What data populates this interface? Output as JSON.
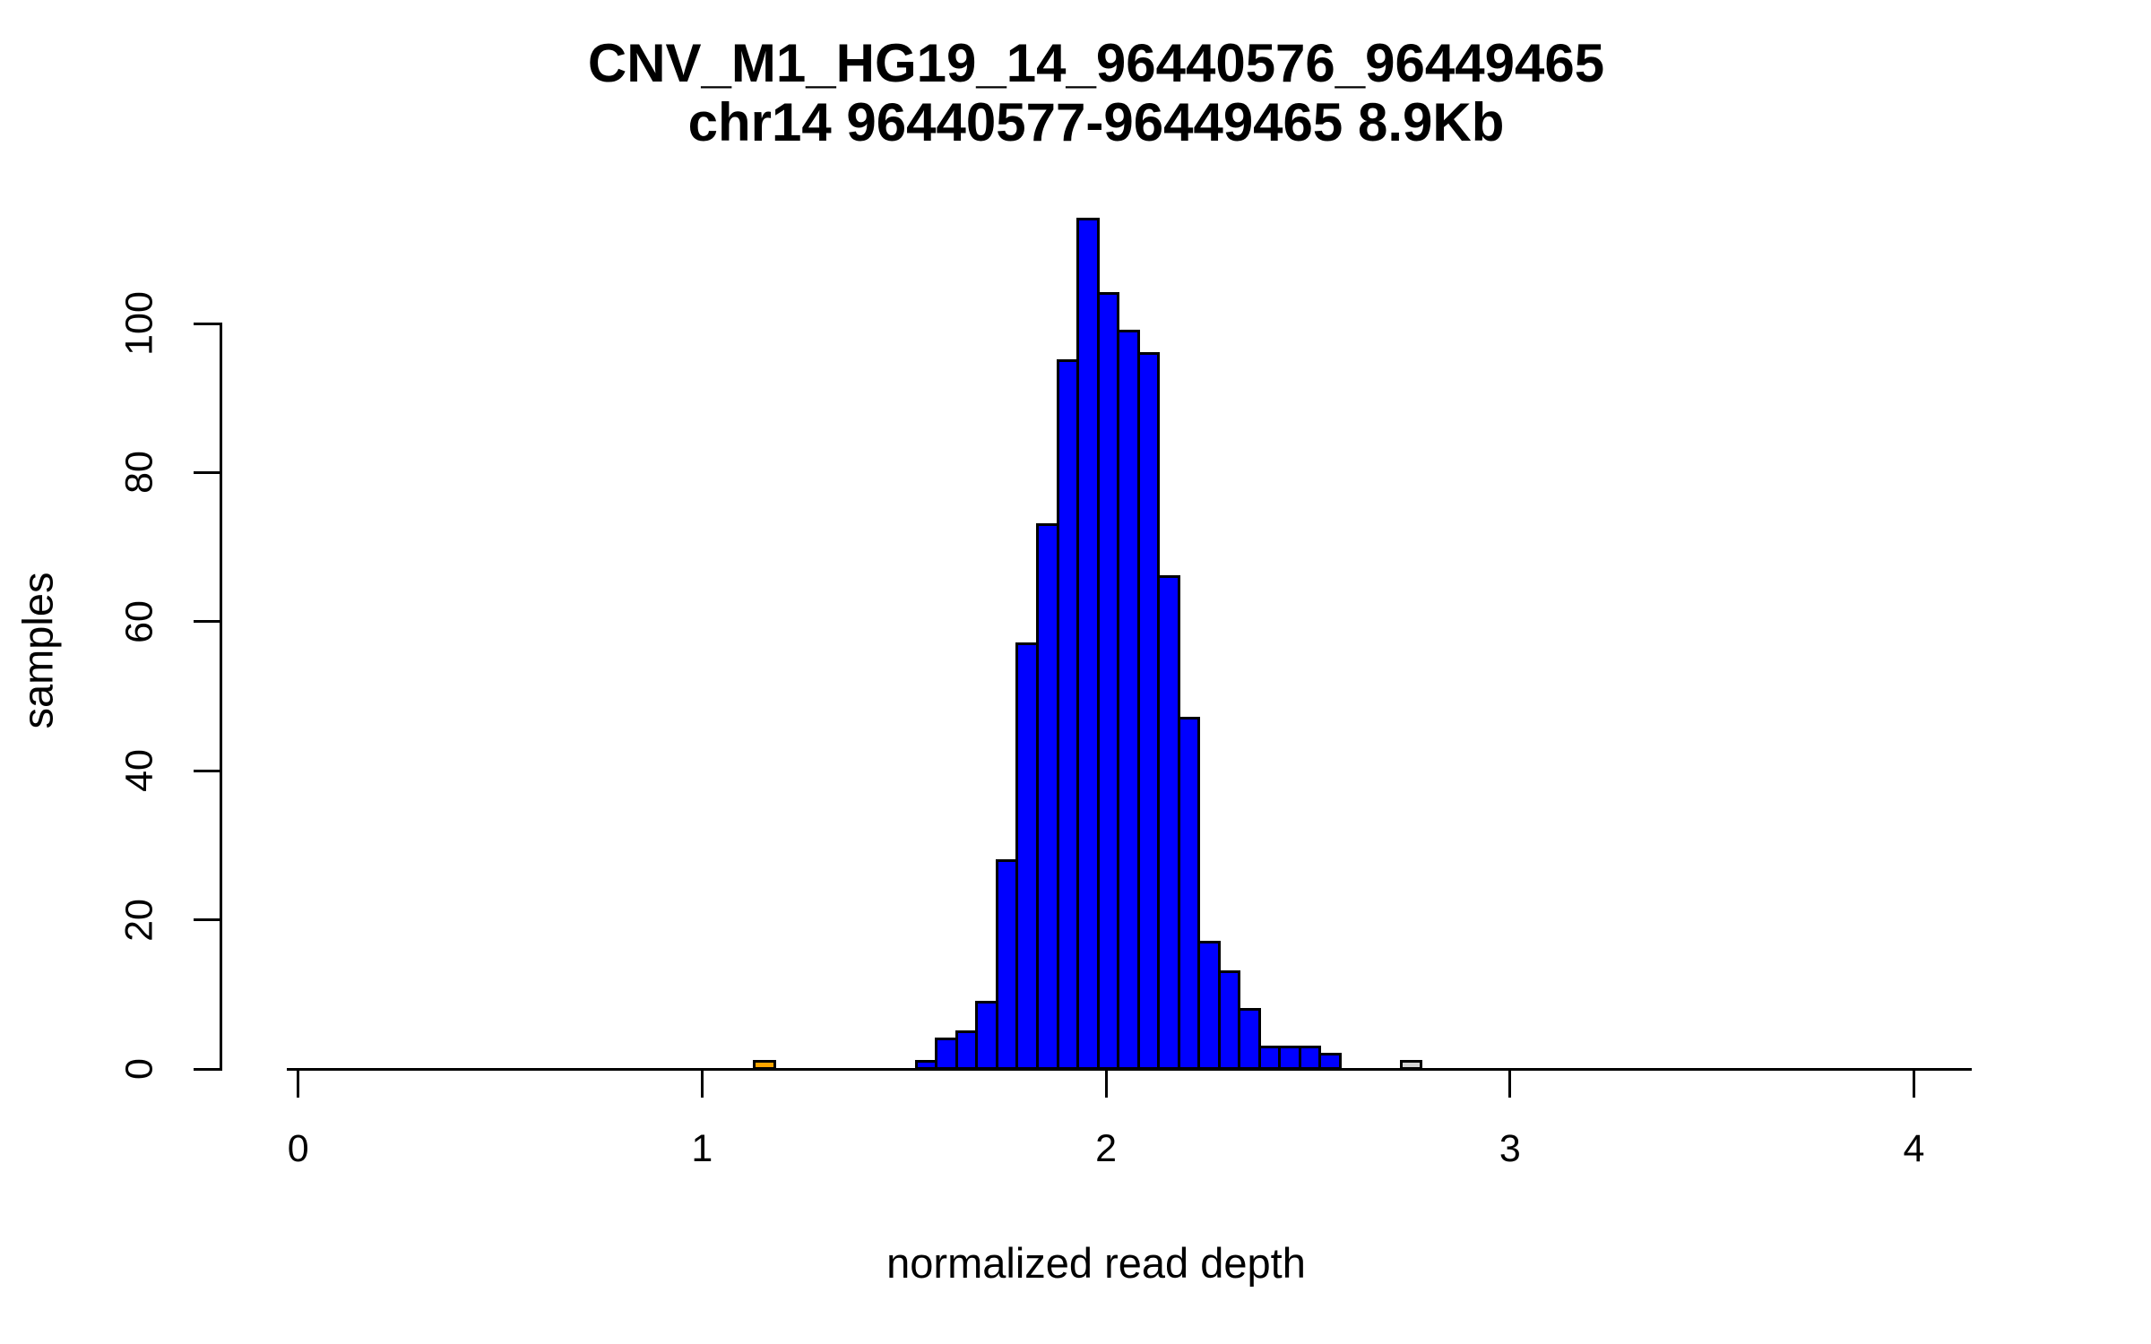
{
  "figure": {
    "background": "#ffffff",
    "text_color": "#000000",
    "axis_color": "#000000"
  },
  "chart_data": {
    "type": "bar",
    "subtype": "histogram",
    "title": "CNV_M1_HG19_14_96440576_96449465",
    "subtitle": "chr14 96440577-96449465 8.9Kb",
    "xlabel": "normalized read depth",
    "ylabel": "samples",
    "xlim": [
      -0.03,
      4.15
    ],
    "ylim": [
      0,
      117
    ],
    "x_ticks": [
      0,
      1,
      2,
      3,
      4
    ],
    "y_ticks": [
      0,
      20,
      40,
      60,
      80,
      100
    ],
    "grid": false,
    "legend": false,
    "bin_width": 0.05,
    "bar_border_color": "#000000",
    "default_bar_color": "#0000ff",
    "outlier_low_color": "#ffa500",
    "outlier_high_color": "#d3d3d3",
    "bars": [
      {
        "x": 1.13,
        "count": 1,
        "color": "#ffa500"
      },
      {
        "x": 1.53,
        "count": 1
      },
      {
        "x": 1.58,
        "count": 4
      },
      {
        "x": 1.63,
        "count": 5
      },
      {
        "x": 1.68,
        "count": 9
      },
      {
        "x": 1.73,
        "count": 28
      },
      {
        "x": 1.78,
        "count": 57
      },
      {
        "x": 1.83,
        "count": 73
      },
      {
        "x": 1.88,
        "count": 95
      },
      {
        "x": 1.93,
        "count": 114
      },
      {
        "x": 1.98,
        "count": 104
      },
      {
        "x": 2.03,
        "count": 99
      },
      {
        "x": 2.08,
        "count": 96
      },
      {
        "x": 2.13,
        "count": 66
      },
      {
        "x": 2.18,
        "count": 47
      },
      {
        "x": 2.23,
        "count": 17
      },
      {
        "x": 2.28,
        "count": 13
      },
      {
        "x": 2.33,
        "count": 8
      },
      {
        "x": 2.38,
        "count": 3
      },
      {
        "x": 2.43,
        "count": 3
      },
      {
        "x": 2.48,
        "count": 3
      },
      {
        "x": 2.53,
        "count": 2
      },
      {
        "x": 2.73,
        "count": 1,
        "color": "#d3d3d3"
      }
    ]
  }
}
